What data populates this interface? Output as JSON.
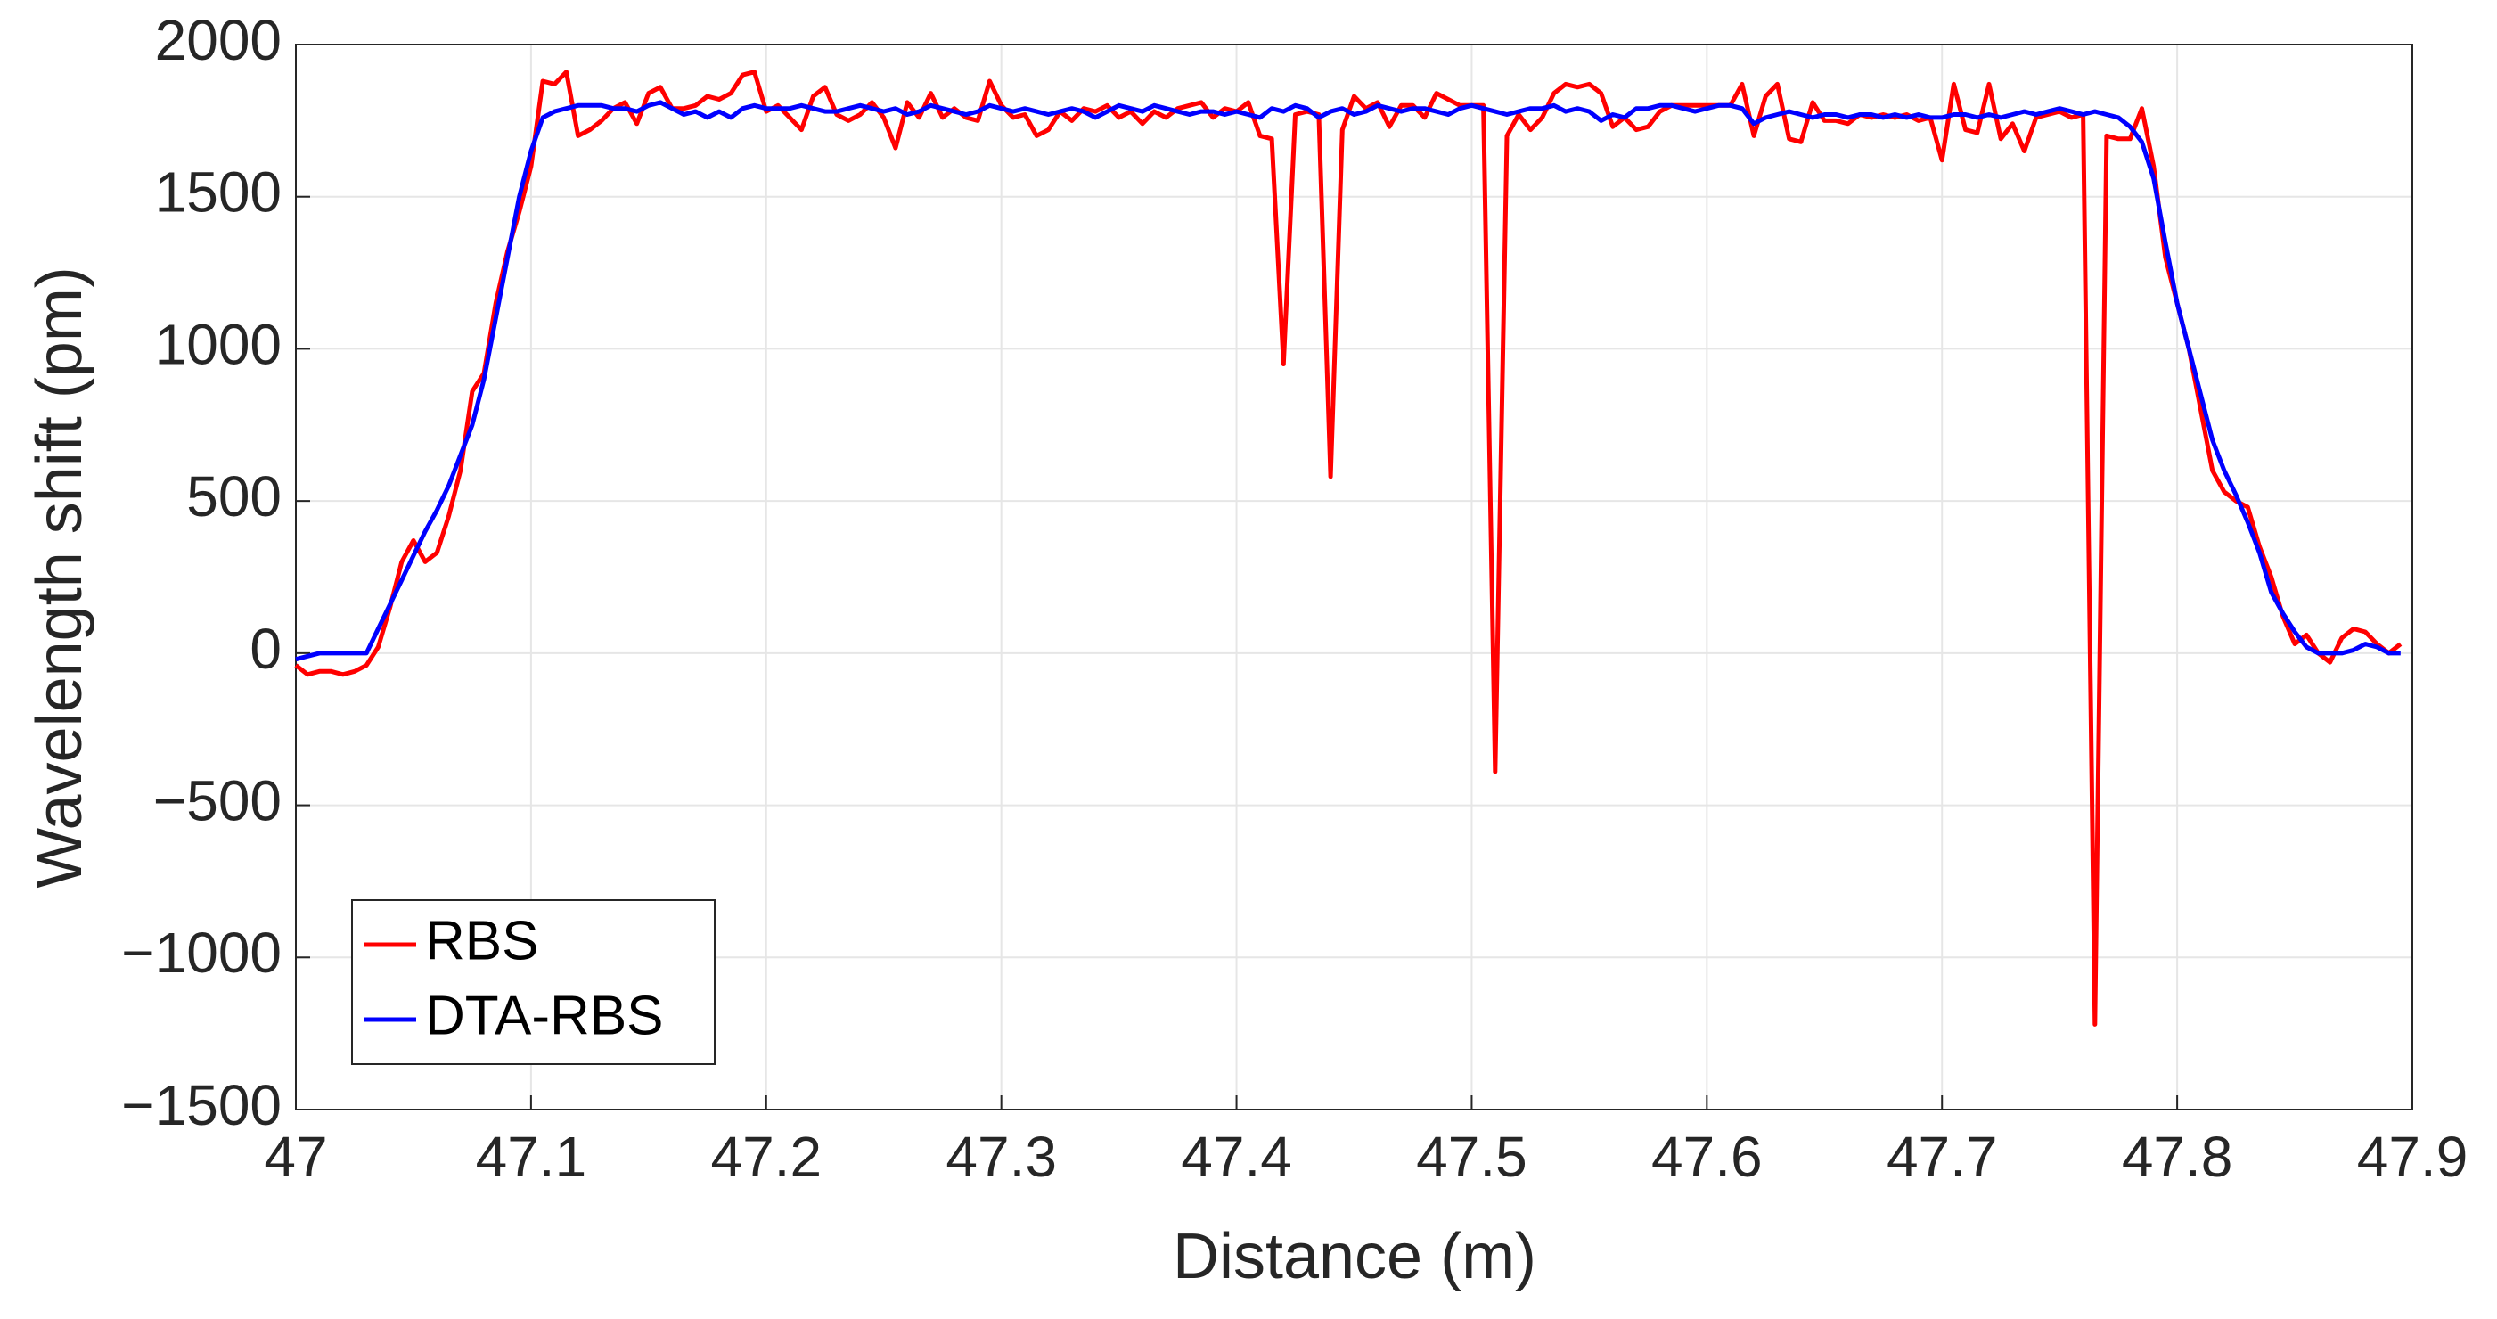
{
  "chart_data": {
    "type": "line",
    "xlabel": "Distance (m)",
    "ylabel": "Wavelength shift (pm)",
    "xlim": [
      47,
      47.9
    ],
    "xticks": [
      47,
      47.1,
      47.2,
      47.3,
      47.4,
      47.5,
      47.6,
      47.7,
      47.8,
      47.9
    ],
    "ylim": [
      -1500,
      2000
    ],
    "yticks": [
      {
        "value": -1500,
        "label": "−1500"
      },
      {
        "value": -1000,
        "label": "−1000"
      },
      {
        "value": -500,
        "label": "−500"
      },
      0,
      500,
      1000,
      1500,
      2000
    ],
    "grid": true,
    "legend": "lower left",
    "x": [
      47,
      47.005,
      47.01,
      47.015,
      47.02,
      47.025,
      47.03,
      47.035,
      47.04,
      47.045,
      47.05,
      47.055,
      47.06,
      47.065,
      47.07,
      47.075,
      47.08,
      47.085,
      47.09,
      47.095,
      47.1,
      47.105,
      47.11,
      47.115,
      47.12,
      47.125,
      47.13,
      47.135,
      47.14,
      47.145,
      47.15,
      47.155,
      47.16,
      47.165,
      47.17,
      47.175,
      47.18,
      47.185,
      47.19,
      47.195,
      47.2,
      47.205,
      47.21,
      47.215,
      47.22,
      47.225,
      47.23,
      47.235,
      47.24,
      47.245,
      47.25,
      47.255,
      47.26,
      47.265,
      47.27,
      47.275,
      47.28,
      47.285,
      47.29,
      47.295,
      47.3,
      47.305,
      47.31,
      47.315,
      47.32,
      47.325,
      47.33,
      47.335,
      47.34,
      47.345,
      47.35,
      47.355,
      47.36,
      47.365,
      47.37,
      47.375,
      47.38,
      47.385,
      47.39,
      47.395,
      47.4,
      47.405,
      47.41,
      47.415,
      47.42,
      47.425,
      47.43,
      47.435,
      47.44,
      47.445,
      47.45,
      47.455,
      47.46,
      47.465,
      47.47,
      47.475,
      47.48,
      47.485,
      47.49,
      47.495,
      47.5,
      47.505,
      47.51,
      47.515,
      47.52,
      47.525,
      47.53,
      47.535,
      47.54,
      47.545,
      47.55,
      47.555,
      47.56,
      47.565,
      47.57,
      47.575,
      47.58,
      47.585,
      47.59,
      47.595,
      47.6,
      47.605,
      47.61,
      47.615,
      47.62,
      47.625,
      47.63,
      47.635,
      47.64,
      47.645,
      47.65,
      47.655,
      47.66,
      47.665,
      47.67,
      47.675,
      47.68,
      47.685,
      47.69,
      47.695,
      47.7,
      47.705,
      47.71,
      47.715,
      47.72,
      47.725,
      47.73,
      47.735,
      47.74,
      47.745,
      47.75,
      47.755,
      47.76,
      47.765,
      47.77,
      47.775,
      47.78,
      47.785,
      47.79,
      47.795,
      47.8,
      47.805,
      47.81,
      47.815,
      47.82,
      47.825,
      47.83,
      47.835,
      47.84,
      47.845,
      47.85,
      47.855,
      47.86,
      47.865,
      47.87,
      47.875,
      47.88,
      47.885,
      47.89,
      47.895
    ],
    "series": [
      {
        "name": "RBS",
        "color": "#ff0000",
        "values": [
          -40,
          -70,
          -60,
          -60,
          -70,
          -60,
          -40,
          20,
          150,
          300,
          370,
          300,
          330,
          450,
          600,
          860,
          920,
          1150,
          1320,
          1450,
          1600,
          1880,
          1870,
          1910,
          1700,
          1720,
          1750,
          1790,
          1810,
          1740,
          1840,
          1860,
          1790,
          1790,
          1800,
          1830,
          1820,
          1840,
          1900,
          1910,
          1780,
          1800,
          1760,
          1720,
          1830,
          1860,
          1770,
          1750,
          1770,
          1810,
          1760,
          1660,
          1810,
          1760,
          1840,
          1760,
          1790,
          1760,
          1750,
          1880,
          1800,
          1760,
          1770,
          1700,
          1720,
          1780,
          1750,
          1790,
          1780,
          1800,
          1760,
          1780,
          1740,
          1780,
          1760,
          1790,
          1800,
          1810,
          1760,
          1790,
          1780,
          1810,
          1700,
          1690,
          950,
          1770,
          1780,
          1770,
          580,
          1720,
          1830,
          1790,
          1810,
          1730,
          1800,
          1800,
          1760,
          1840,
          1820,
          1800,
          1800,
          1800,
          -390,
          1700,
          1770,
          1720,
          1760,
          1840,
          1870,
          1860,
          1870,
          1840,
          1730,
          1760,
          1720,
          1730,
          1780,
          1800,
          1800,
          1800,
          1800,
          1800,
          1800,
          1870,
          1700,
          1830,
          1870,
          1690,
          1680,
          1810,
          1750,
          1750,
          1740,
          1770,
          1760,
          1770,
          1760,
          1770,
          1750,
          1760,
          1620,
          1870,
          1720,
          1710,
          1870,
          1690,
          1740,
          1650,
          1760,
          1770,
          1780,
          1760,
          1770,
          -1220,
          1700,
          1690,
          1690,
          1790,
          1600,
          1300,
          1150,
          1000,
          800,
          600,
          530,
          500,
          480,
          350,
          250,
          120,
          30,
          60,
          0,
          -30,
          50,
          80,
          70,
          30,
          0,
          30
        ]
      },
      {
        "name": "DTA-RBS",
        "color": "#0000ff",
        "values": [
          -20,
          -10,
          0,
          0,
          0,
          0,
          0,
          80,
          160,
          240,
          320,
          400,
          470,
          550,
          650,
          750,
          900,
          1100,
          1300,
          1500,
          1650,
          1760,
          1780,
          1790,
          1800,
          1800,
          1800,
          1790,
          1790,
          1780,
          1800,
          1810,
          1790,
          1770,
          1780,
          1760,
          1780,
          1760,
          1790,
          1800,
          1790,
          1790,
          1790,
          1800,
          1790,
          1780,
          1780,
          1790,
          1800,
          1790,
          1780,
          1790,
          1770,
          1780,
          1800,
          1790,
          1780,
          1770,
          1780,
          1800,
          1790,
          1780,
          1790,
          1780,
          1770,
          1780,
          1790,
          1780,
          1760,
          1780,
          1800,
          1790,
          1780,
          1800,
          1790,
          1780,
          1770,
          1780,
          1780,
          1770,
          1780,
          1770,
          1760,
          1790,
          1780,
          1800,
          1790,
          1760,
          1780,
          1790,
          1770,
          1780,
          1800,
          1790,
          1780,
          1790,
          1790,
          1780,
          1770,
          1790,
          1800,
          1790,
          1780,
          1770,
          1780,
          1790,
          1790,
          1800,
          1780,
          1790,
          1780,
          1750,
          1770,
          1760,
          1790,
          1790,
          1800,
          1800,
          1790,
          1780,
          1790,
          1800,
          1800,
          1790,
          1740,
          1760,
          1770,
          1780,
          1770,
          1760,
          1770,
          1770,
          1760,
          1770,
          1770,
          1760,
          1770,
          1760,
          1770,
          1760,
          1760,
          1770,
          1770,
          1760,
          1770,
          1760,
          1770,
          1780,
          1770,
          1780,
          1790,
          1780,
          1770,
          1780,
          1770,
          1760,
          1730,
          1680,
          1560,
          1350,
          1150,
          1000,
          850,
          700,
          600,
          520,
          430,
          330,
          200,
          130,
          70,
          20,
          0,
          0,
          0,
          10,
          30,
          20,
          0,
          0
        ]
      }
    ]
  }
}
